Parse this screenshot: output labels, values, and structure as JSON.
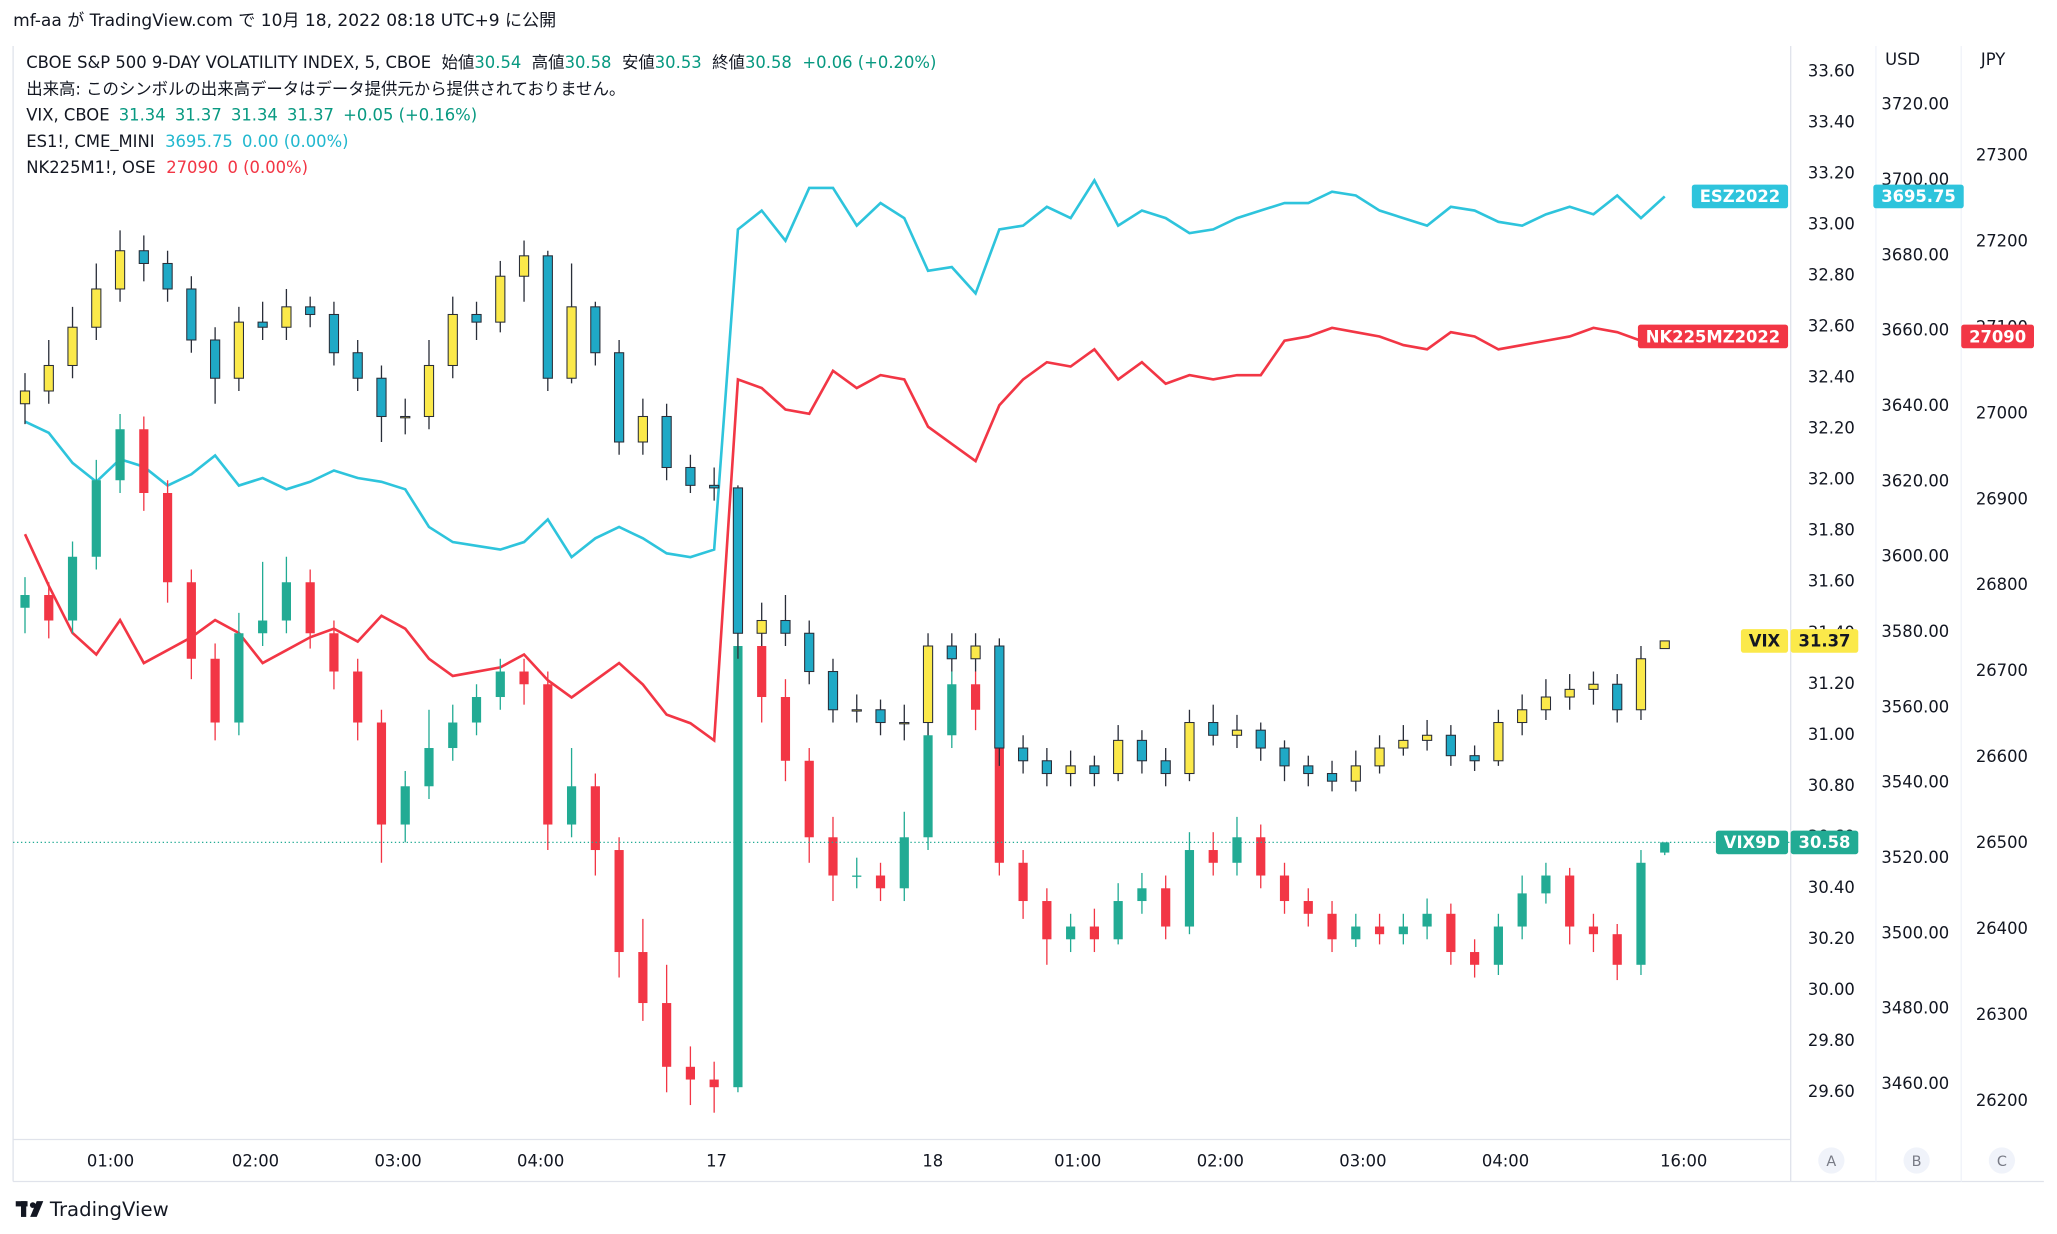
{
  "header": {
    "text": "mf-aa が TradingView.com で 10月 18, 2022 08:18 UTC+9 に公開"
  },
  "legend": [
    {
      "label": "CBOE S&P 500 9-DAY VOLATILITY INDEX, 5, CBOE",
      "fields": [
        "始値",
        "高値",
        "安値",
        "終値"
      ],
      "change": "+0.06 (+0.20%)"
    },
    {
      "label": "出来高: このシンボルの出来高データはデータ提供元から提供されておりません。"
    },
    {
      "label": "VIX, CBOE",
      "change": "+0.05 (+0.16%)"
    },
    {
      "label": "ES1!, CME_MINI",
      "change": "0.00 (0.00%)"
    },
    {
      "label": "NK225M1!, OSE",
      "change": "0 (0.00%)"
    }
  ],
  "axis_titles": [
    "USD",
    "JPY"
  ],
  "buttons": [
    "A",
    "B",
    "C"
  ],
  "footer": {
    "brand": "TradingView"
  },
  "chart_data": {
    "type": "candlestick",
    "xlim": [
      -0.5,
      74.3
    ],
    "xticks": [
      {
        "value": 3.6,
        "label": "01:00"
      },
      {
        "value": 9.7,
        "label": "02:00"
      },
      {
        "value": 15.7,
        "label": "03:00"
      },
      {
        "value": 21.7,
        "label": "04:00"
      },
      {
        "value": 29.1,
        "label": "17"
      },
      {
        "value": 38.2,
        "label": "18"
      },
      {
        "value": 44.3,
        "label": "01:00"
      },
      {
        "value": 50.3,
        "label": "02:00"
      },
      {
        "value": 56.3,
        "label": "03:00"
      },
      {
        "value": 62.3,
        "label": "04:00"
      },
      {
        "value": 69.8,
        "label": "16:00"
      }
    ],
    "ylim": [
      29.415,
      33.703
    ],
    "yticks": [
      {
        "value": 29.6,
        "label": "29.60"
      },
      {
        "value": 29.8,
        "label": "29.80"
      },
      {
        "value": 30.0,
        "label": "30.00"
      },
      {
        "value": 30.2,
        "label": "30.20"
      },
      {
        "value": 30.4,
        "label": "30.40"
      },
      {
        "value": 30.6,
        "label": "30.60"
      },
      {
        "value": 30.8,
        "label": "30.80"
      },
      {
        "value": 31.0,
        "label": "31.00"
      },
      {
        "value": 31.2,
        "label": "31.20"
      },
      {
        "value": 31.4,
        "label": "31.40"
      },
      {
        "value": 31.6,
        "label": "31.60"
      },
      {
        "value": 31.8,
        "label": "31.80"
      },
      {
        "value": 32.0,
        "label": "32.00"
      },
      {
        "value": 32.2,
        "label": "32.20"
      },
      {
        "value": 32.4,
        "label": "32.40"
      },
      {
        "value": 32.6,
        "label": "32.60"
      },
      {
        "value": 32.8,
        "label": "32.80"
      },
      {
        "value": 33.0,
        "label": "33.00"
      },
      {
        "value": 33.2,
        "label": "33.20"
      },
      {
        "value": 33.4,
        "label": "33.40"
      },
      {
        "value": 33.6,
        "label": "33.60"
      }
    ],
    "y2lim": [
      3445.4,
      3735.7
    ],
    "y2ticks": [
      {
        "value": 3460,
        "label": "3460.00"
      },
      {
        "value": 3480,
        "label": "3480.00"
      },
      {
        "value": 3500,
        "label": "3500.00"
      },
      {
        "value": 3520,
        "label": "3520.00"
      },
      {
        "value": 3540,
        "label": "3540.00"
      },
      {
        "value": 3560,
        "label": "3560.00"
      },
      {
        "value": 3580,
        "label": "3580.00"
      },
      {
        "value": 3600,
        "label": "3600.00"
      },
      {
        "value": 3620,
        "label": "3620.00"
      },
      {
        "value": 3640,
        "label": "3640.00"
      },
      {
        "value": 3660,
        "label": "3660.00"
      },
      {
        "value": 3680,
        "label": "3680.00"
      },
      {
        "value": 3700,
        "label": "3700.00"
      },
      {
        "value": 3720,
        "label": "3720.00"
      }
    ],
    "y3lim": [
      26155.7,
      27428
    ],
    "y3ticks": [
      26200,
      26300,
      26400,
      26500,
      26600,
      26700,
      26800,
      26900,
      27000,
      27100,
      27200,
      27300
    ],
    "series": [
      {
        "name": "VIX9D",
        "type": "candlestick",
        "up_color": "#22ab94",
        "down_color": "#f23645",
        "open": [
          31.5,
          31.55,
          31.45,
          31.7,
          32.0,
          32.2,
          31.95,
          31.6,
          31.3,
          31.05,
          31.4,
          31.45,
          31.6,
          31.4,
          31.25,
          31.05,
          30.65,
          30.8,
          30.95,
          31.05,
          31.15,
          31.25,
          31.2,
          30.65,
          30.8,
          30.55,
          30.15,
          29.95,
          29.7,
          29.65,
          29.62,
          31.35,
          31.15,
          30.9,
          30.6,
          30.45,
          30.45,
          30.4,
          30.6,
          31.0,
          31.2,
          31.1,
          30.5,
          30.35,
          30.2,
          30.25,
          30.2,
          30.35,
          30.4,
          30.25,
          30.55,
          30.5,
          30.6,
          30.45,
          30.35,
          30.3,
          30.2,
          30.25,
          30.22,
          30.25,
          30.3,
          30.15,
          30.1,
          30.25,
          30.38,
          30.45,
          30.25,
          30.22,
          30.1,
          30.54
        ],
        "high": [
          31.62,
          31.6,
          31.76,
          32.08,
          32.26,
          32.25,
          32.0,
          31.65,
          31.36,
          31.48,
          31.68,
          31.7,
          31.65,
          31.45,
          31.3,
          31.1,
          30.86,
          31.1,
          31.12,
          31.2,
          31.3,
          31.3,
          31.25,
          30.95,
          30.85,
          30.6,
          30.28,
          30.1,
          29.78,
          29.72,
          31.55,
          31.45,
          31.22,
          30.95,
          30.68,
          30.52,
          30.5,
          30.7,
          31.1,
          31.25,
          31.25,
          31.15,
          30.55,
          30.4,
          30.3,
          30.32,
          30.42,
          30.46,
          30.45,
          30.62,
          30.62,
          30.68,
          30.65,
          30.5,
          30.4,
          30.35,
          30.3,
          30.3,
          30.3,
          30.36,
          30.34,
          30.2,
          30.3,
          30.45,
          30.5,
          30.48,
          30.3,
          30.26,
          30.55,
          30.58
        ],
        "low": [
          31.4,
          31.38,
          31.4,
          31.65,
          31.95,
          31.88,
          31.52,
          31.22,
          30.98,
          31.0,
          31.35,
          31.4,
          31.34,
          31.18,
          30.98,
          30.5,
          30.58,
          30.75,
          30.9,
          31.0,
          31.1,
          31.12,
          30.55,
          30.6,
          30.45,
          30.05,
          29.88,
          29.6,
          29.55,
          29.52,
          29.6,
          31.05,
          30.82,
          30.5,
          30.35,
          30.4,
          30.35,
          30.35,
          30.55,
          30.95,
          31.02,
          30.45,
          30.28,
          30.1,
          30.15,
          30.15,
          30.18,
          30.3,
          30.2,
          30.22,
          30.45,
          30.45,
          30.4,
          30.3,
          30.25,
          30.15,
          30.17,
          30.18,
          30.18,
          30.2,
          30.1,
          30.05,
          30.06,
          30.2,
          30.34,
          30.18,
          30.15,
          30.04,
          30.06,
          30.53
        ],
        "close": [
          31.55,
          31.45,
          31.7,
          32.0,
          32.2,
          31.95,
          31.6,
          31.3,
          31.05,
          31.4,
          31.45,
          31.6,
          31.4,
          31.25,
          31.05,
          30.65,
          30.8,
          30.95,
          31.05,
          31.15,
          31.25,
          31.2,
          30.65,
          30.8,
          30.55,
          30.15,
          29.95,
          29.7,
          29.65,
          29.62,
          31.35,
          31.15,
          30.9,
          30.6,
          30.45,
          30.45,
          30.4,
          30.6,
          31.0,
          31.2,
          31.1,
          30.5,
          30.35,
          30.2,
          30.25,
          30.2,
          30.35,
          30.4,
          30.25,
          30.55,
          30.5,
          30.6,
          30.45,
          30.35,
          30.3,
          30.2,
          30.25,
          30.22,
          30.25,
          30.3,
          30.15,
          30.1,
          30.25,
          30.38,
          30.45,
          30.25,
          30.22,
          30.1,
          30.5,
          30.58
        ]
      },
      {
        "name": "VIX",
        "type": "candlestick",
        "up_color": "#fbe94a",
        "down_color": "#1fa9c6",
        "open": [
          32.3,
          32.35,
          32.45,
          32.6,
          32.75,
          32.9,
          32.85,
          32.75,
          32.55,
          32.4,
          32.62,
          32.6,
          32.68,
          32.65,
          32.5,
          32.4,
          32.25,
          32.25,
          32.45,
          32.65,
          32.62,
          32.8,
          32.88,
          32.4,
          32.68,
          32.5,
          32.15,
          32.25,
          32.05,
          31.98,
          31.97,
          31.4,
          31.45,
          31.4,
          31.25,
          31.1,
          31.1,
          31.05,
          31.05,
          31.35,
          31.3,
          31.35,
          30.95,
          30.9,
          30.85,
          30.88,
          30.85,
          30.98,
          30.9,
          30.85,
          31.05,
          31.0,
          31.02,
          30.95,
          30.88,
          30.85,
          30.82,
          30.88,
          30.95,
          30.98,
          31.0,
          30.92,
          30.9,
          31.05,
          31.1,
          31.15,
          31.18,
          31.2,
          31.1,
          31.34
        ],
        "high": [
          32.42,
          32.55,
          32.68,
          32.85,
          32.98,
          32.96,
          32.9,
          32.8,
          32.6,
          32.68,
          32.7,
          32.75,
          32.72,
          32.7,
          32.55,
          32.45,
          32.32,
          32.55,
          32.72,
          32.7,
          32.86,
          32.94,
          32.9,
          32.85,
          32.7,
          32.55,
          32.32,
          32.3,
          32.1,
          32.05,
          31.98,
          31.52,
          31.55,
          31.45,
          31.3,
          31.16,
          31.14,
          31.12,
          31.4,
          31.4,
          31.4,
          31.38,
          31.0,
          30.95,
          30.94,
          30.92,
          31.04,
          31.02,
          30.95,
          31.1,
          31.12,
          31.08,
          31.05,
          30.98,
          30.92,
          30.9,
          30.94,
          31.0,
          31.04,
          31.06,
          31.04,
          30.96,
          31.1,
          31.16,
          31.22,
          31.24,
          31.25,
          31.24,
          31.35,
          31.37
        ],
        "low": [
          32.22,
          32.3,
          32.4,
          32.55,
          32.7,
          32.78,
          32.7,
          32.5,
          32.3,
          32.35,
          32.55,
          32.55,
          32.6,
          32.45,
          32.35,
          32.15,
          32.18,
          32.2,
          32.4,
          32.55,
          32.58,
          32.7,
          32.35,
          32.38,
          32.45,
          32.1,
          32.1,
          32.0,
          31.95,
          31.92,
          31.3,
          31.35,
          31.35,
          31.2,
          31.05,
          31.05,
          31.0,
          30.98,
          31.0,
          31.25,
          31.25,
          30.88,
          30.85,
          30.8,
          30.8,
          30.8,
          30.82,
          30.85,
          30.8,
          30.82,
          30.96,
          30.95,
          30.9,
          30.82,
          30.8,
          30.78,
          30.78,
          30.85,
          30.92,
          30.94,
          30.88,
          30.86,
          30.88,
          31.0,
          31.06,
          31.1,
          31.12,
          31.05,
          31.06,
          31.34
        ],
        "close": [
          32.35,
          32.45,
          32.6,
          32.75,
          32.9,
          32.85,
          32.75,
          32.55,
          32.4,
          32.62,
          32.6,
          32.68,
          32.65,
          32.5,
          32.4,
          32.25,
          32.25,
          32.45,
          32.65,
          32.62,
          32.8,
          32.88,
          32.4,
          32.68,
          32.5,
          32.15,
          32.25,
          32.05,
          31.98,
          31.97,
          31.4,
          31.45,
          31.4,
          31.25,
          31.1,
          31.1,
          31.05,
          31.05,
          31.35,
          31.3,
          31.35,
          30.95,
          30.9,
          30.85,
          30.88,
          30.85,
          30.98,
          30.9,
          30.85,
          31.05,
          31.0,
          31.02,
          30.95,
          30.88,
          30.85,
          30.82,
          30.88,
          30.95,
          30.98,
          31.0,
          30.92,
          30.9,
          31.05,
          31.1,
          31.15,
          31.18,
          31.2,
          31.1,
          31.3,
          31.37
        ]
      },
      {
        "name": "ESZ2022",
        "type": "line",
        "axis": "y2",
        "color": "#2ec4dc",
        "values": [
          3636,
          3633,
          3625,
          3620,
          3626,
          3624,
          3619,
          3622,
          3627,
          3619,
          3621,
          3618,
          3620,
          3623,
          3621,
          3620,
          3618,
          3608,
          3604,
          3603,
          3602,
          3604,
          3610,
          3600,
          3605,
          3608,
          3605,
          3601,
          3600,
          3602,
          3687,
          3692,
          3684,
          3698,
          3698,
          3688,
          3694,
          3690,
          3676,
          3677,
          3670,
          3687,
          3688,
          3693,
          3690,
          3700,
          3688,
          3692,
          3690,
          3686,
          3687,
          3690,
          3692,
          3694,
          3694,
          3697,
          3696,
          3692,
          3690,
          3688,
          3693,
          3692,
          3689,
          3688,
          3691,
          3693,
          3691,
          3696,
          3690,
          3695.75
        ]
      },
      {
        "name": "NK225MZ2022",
        "type": "line",
        "axis": "y3",
        "color": "#f23645",
        "values": [
          26860,
          26800,
          26745,
          26720,
          26760,
          26710,
          26725,
          26740,
          26760,
          26745,
          26710,
          26725,
          26740,
          26750,
          26735,
          26765,
          26750,
          26715,
          26695,
          26700,
          26705,
          26720,
          26690,
          26670,
          26690,
          26710,
          26685,
          26650,
          26640,
          26620,
          27040,
          27030,
          27005,
          27000,
          27050,
          27030,
          27045,
          27040,
          26985,
          26965,
          26945,
          27010,
          27040,
          27060,
          27055,
          27075,
          27040,
          27060,
          27035,
          27045,
          27040,
          27045,
          27045,
          27085,
          27090,
          27100,
          27095,
          27090,
          27080,
          27075,
          27095,
          27090,
          27075,
          27080,
          27085,
          27090,
          27100,
          27095,
          27085,
          27090
        ]
      }
    ]
  }
}
